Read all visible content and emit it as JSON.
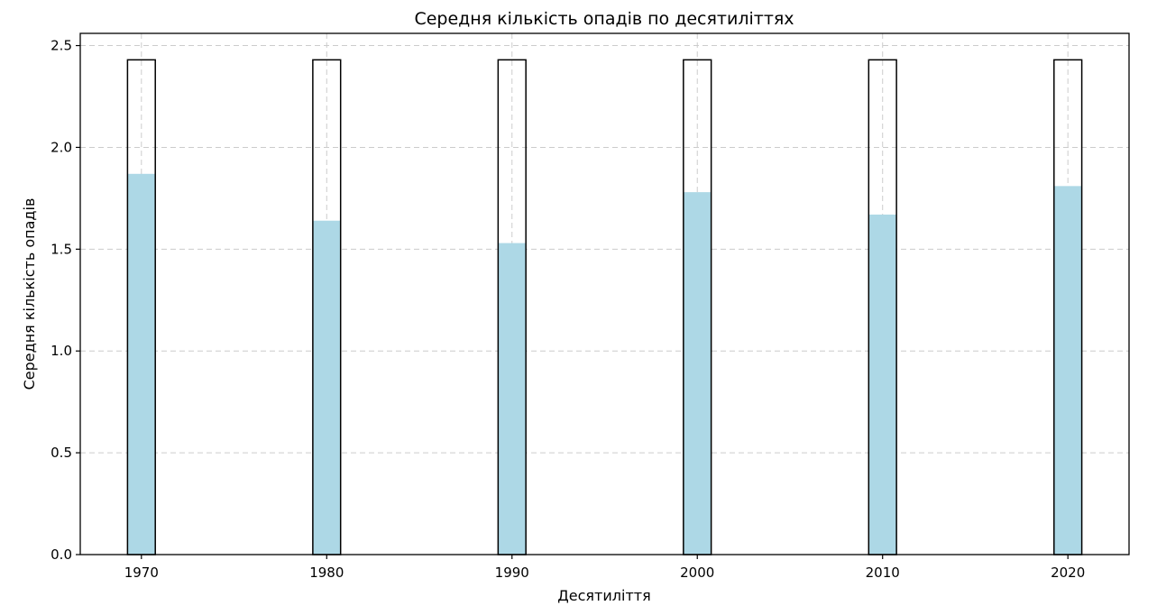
{
  "chart_data": {
    "type": "bar",
    "title": "Середня кількість опадів по десятиліттях",
    "xlabel": "Десятиліття",
    "ylabel": "Середня кількість опадів",
    "categories": [
      1970,
      1980,
      1990,
      2000,
      2010,
      2020
    ],
    "x_ticks": [
      "1970",
      "1980",
      "1990",
      "2000",
      "2010",
      "2020"
    ],
    "series": [
      {
        "values": [
          1.87,
          1.64,
          1.53,
          1.78,
          1.67,
          1.81
        ],
        "color": "#add8e6"
      },
      {
        "values": [
          2.43,
          2.43,
          2.43,
          2.43,
          2.43,
          2.43
        ],
        "color": "none",
        "edgecolor": "#000000"
      }
    ],
    "ylim": [
      0,
      2.56
    ],
    "xlim": [
      1966.7,
      2023.3
    ],
    "y_ticks": [
      "0.0",
      "0.5",
      "1.0",
      "1.5",
      "2.0",
      "2.5"
    ],
    "grid": true
  }
}
